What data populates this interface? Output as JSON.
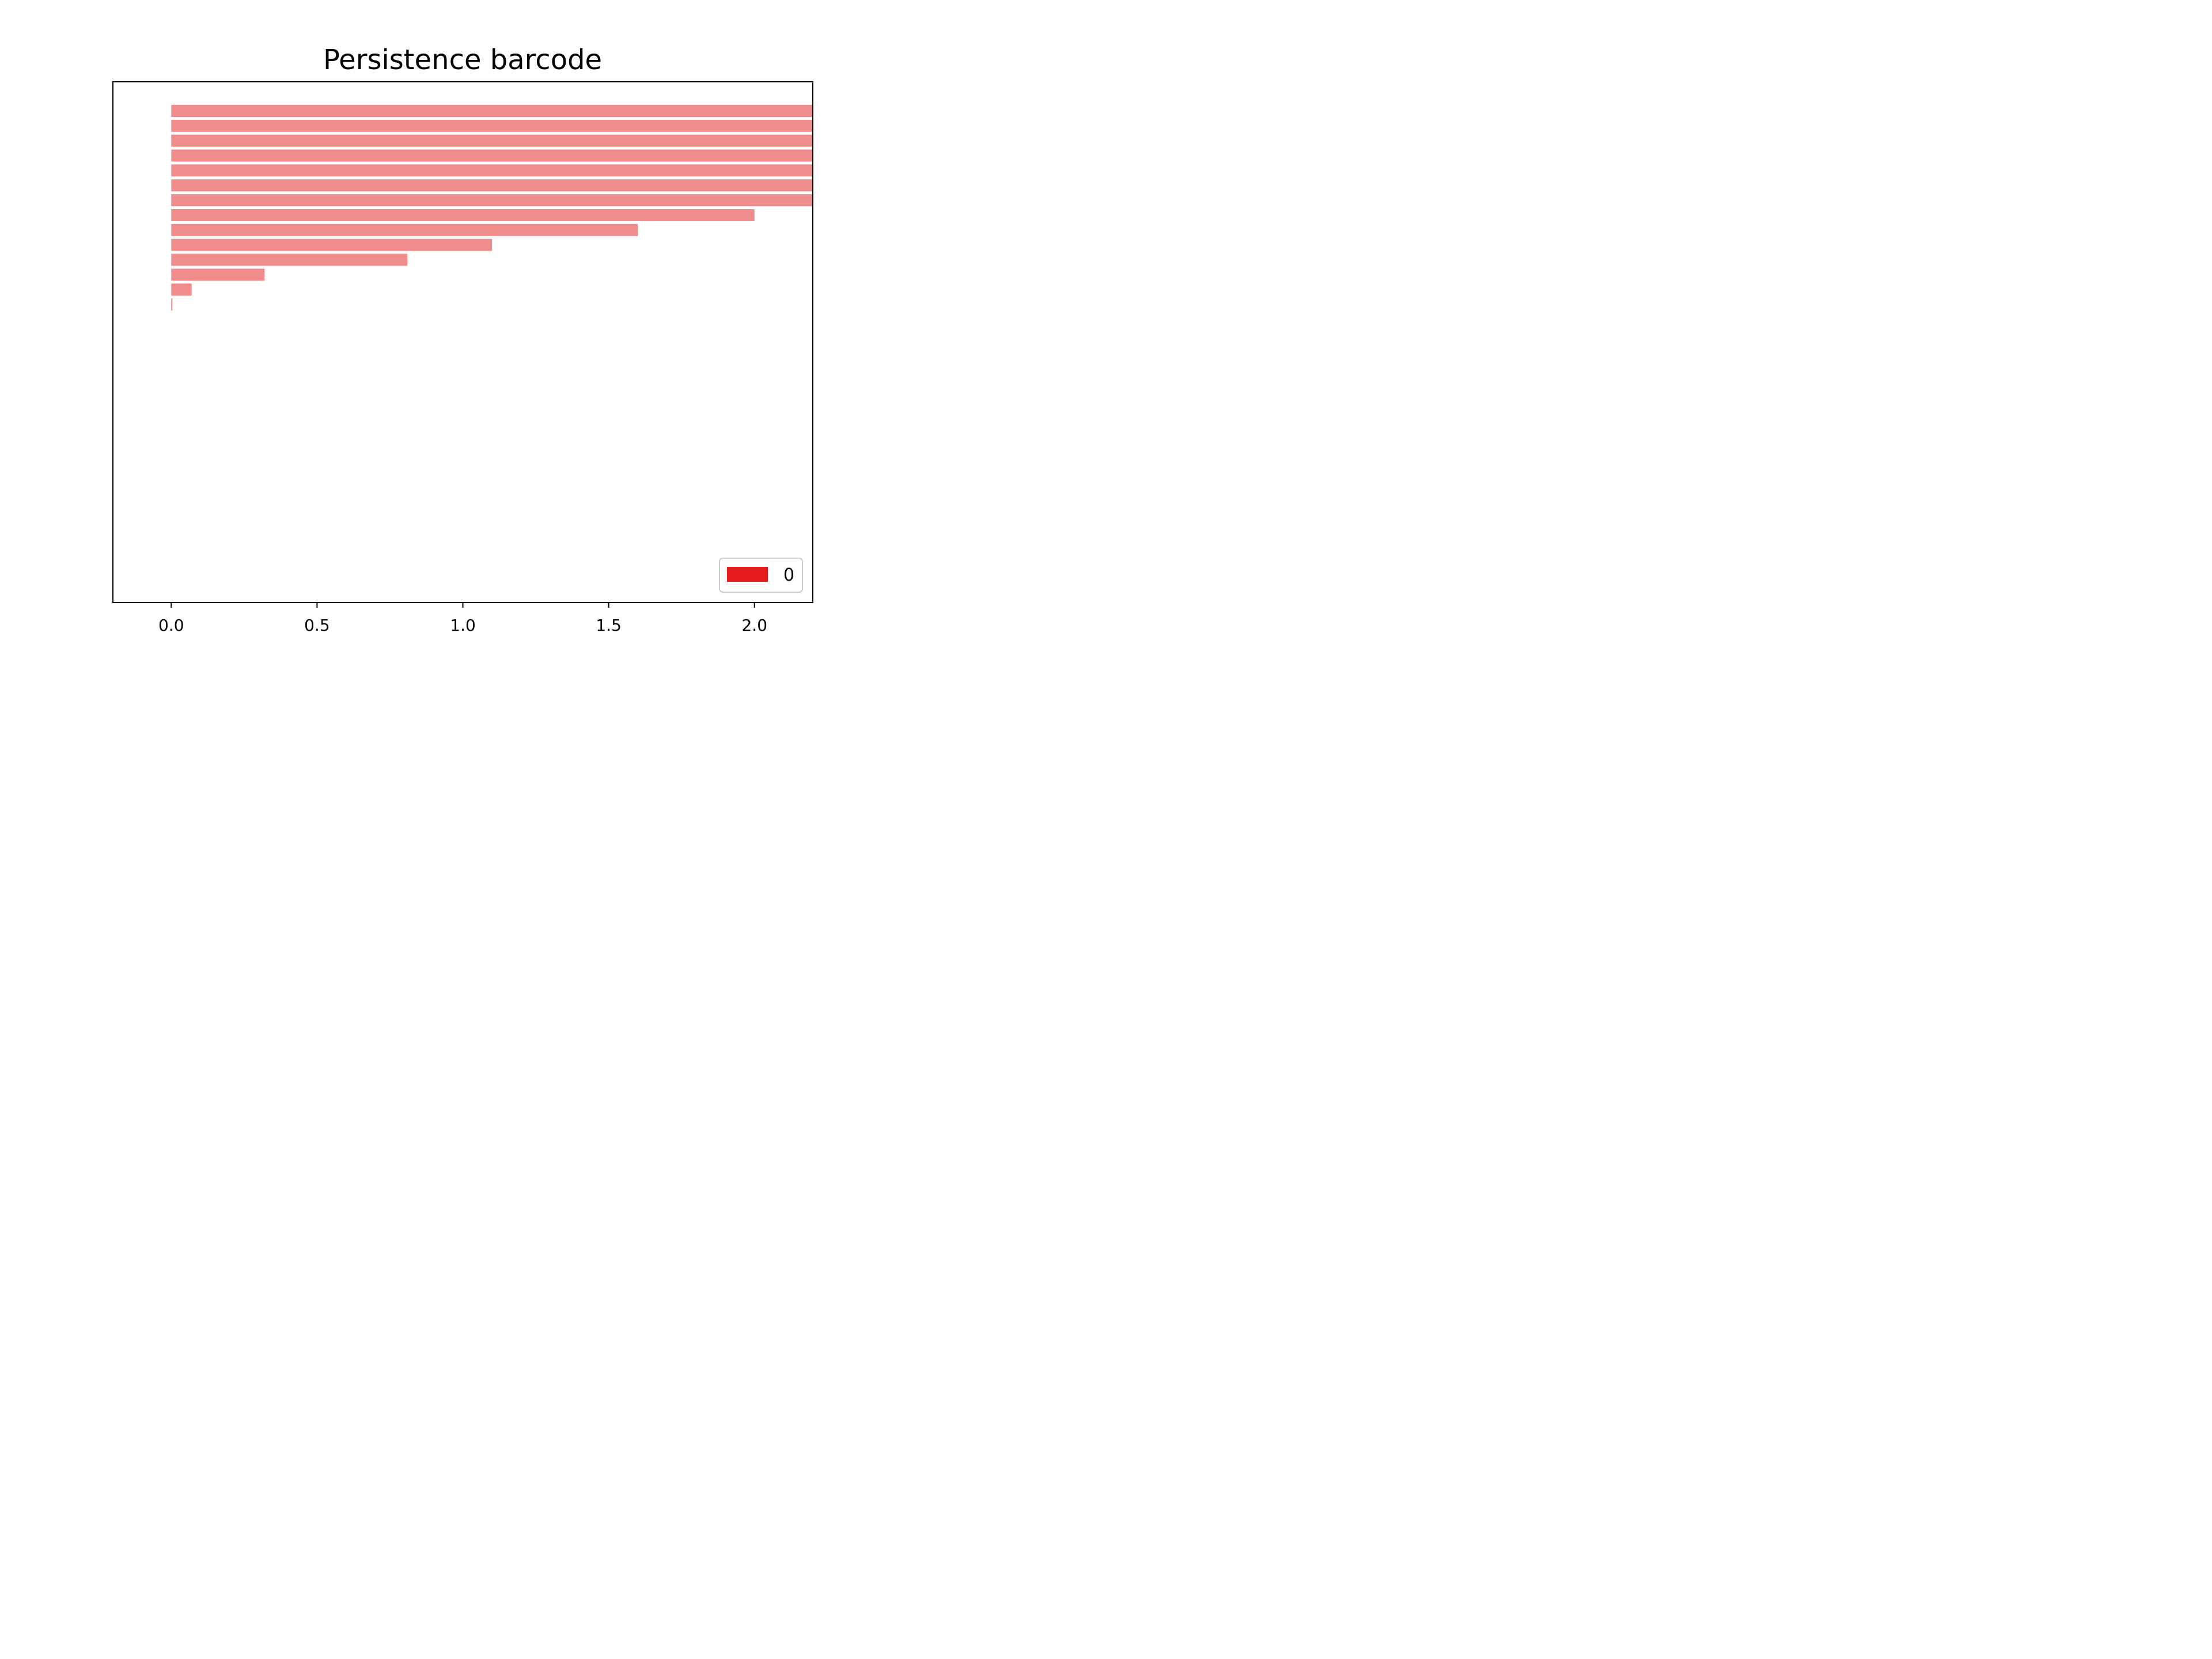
{
  "chart_data": {
    "type": "bar",
    "orientation": "horizontal",
    "title": "Persistence barcode",
    "xlabel": "",
    "ylabel": "",
    "xlim": [
      -0.2,
      2.2
    ],
    "xticks": [
      "0.0",
      "0.5",
      "1.0",
      "1.5",
      "2.0"
    ],
    "xtick_values": [
      0.0,
      0.5,
      1.0,
      1.5,
      2.0
    ],
    "grid": false,
    "legend": {
      "placement": "lower-right",
      "entries": [
        {
          "label": "0",
          "color": "#e41a1c"
        }
      ]
    },
    "bar_color": "#f08c8c",
    "bars": [
      {
        "dimension": 0,
        "birth": 0.0,
        "death": 2.2,
        "infinite": true
      },
      {
        "dimension": 0,
        "birth": 0.0,
        "death": 2.2,
        "infinite": true
      },
      {
        "dimension": 0,
        "birth": 0.0,
        "death": 2.2,
        "infinite": true
      },
      {
        "dimension": 0,
        "birth": 0.0,
        "death": 2.2,
        "infinite": true
      },
      {
        "dimension": 0,
        "birth": 0.0,
        "death": 2.2,
        "infinite": true
      },
      {
        "dimension": 0,
        "birth": 0.0,
        "death": 2.2,
        "infinite": true
      },
      {
        "dimension": 0,
        "birth": 0.0,
        "death": 2.2,
        "infinite": true
      },
      {
        "dimension": 0,
        "birth": 0.0,
        "death": 2.0,
        "infinite": false
      },
      {
        "dimension": 0,
        "birth": 0.0,
        "death": 1.6,
        "infinite": false
      },
      {
        "dimension": 0,
        "birth": 0.0,
        "death": 1.1,
        "infinite": false
      },
      {
        "dimension": 0,
        "birth": 0.0,
        "death": 0.81,
        "infinite": false
      },
      {
        "dimension": 0,
        "birth": 0.0,
        "death": 0.32,
        "infinite": false
      },
      {
        "dimension": 0,
        "birth": 0.0,
        "death": 0.07,
        "infinite": false
      },
      {
        "dimension": 0,
        "birth": 0.0,
        "death": 0.004,
        "infinite": false
      }
    ]
  }
}
